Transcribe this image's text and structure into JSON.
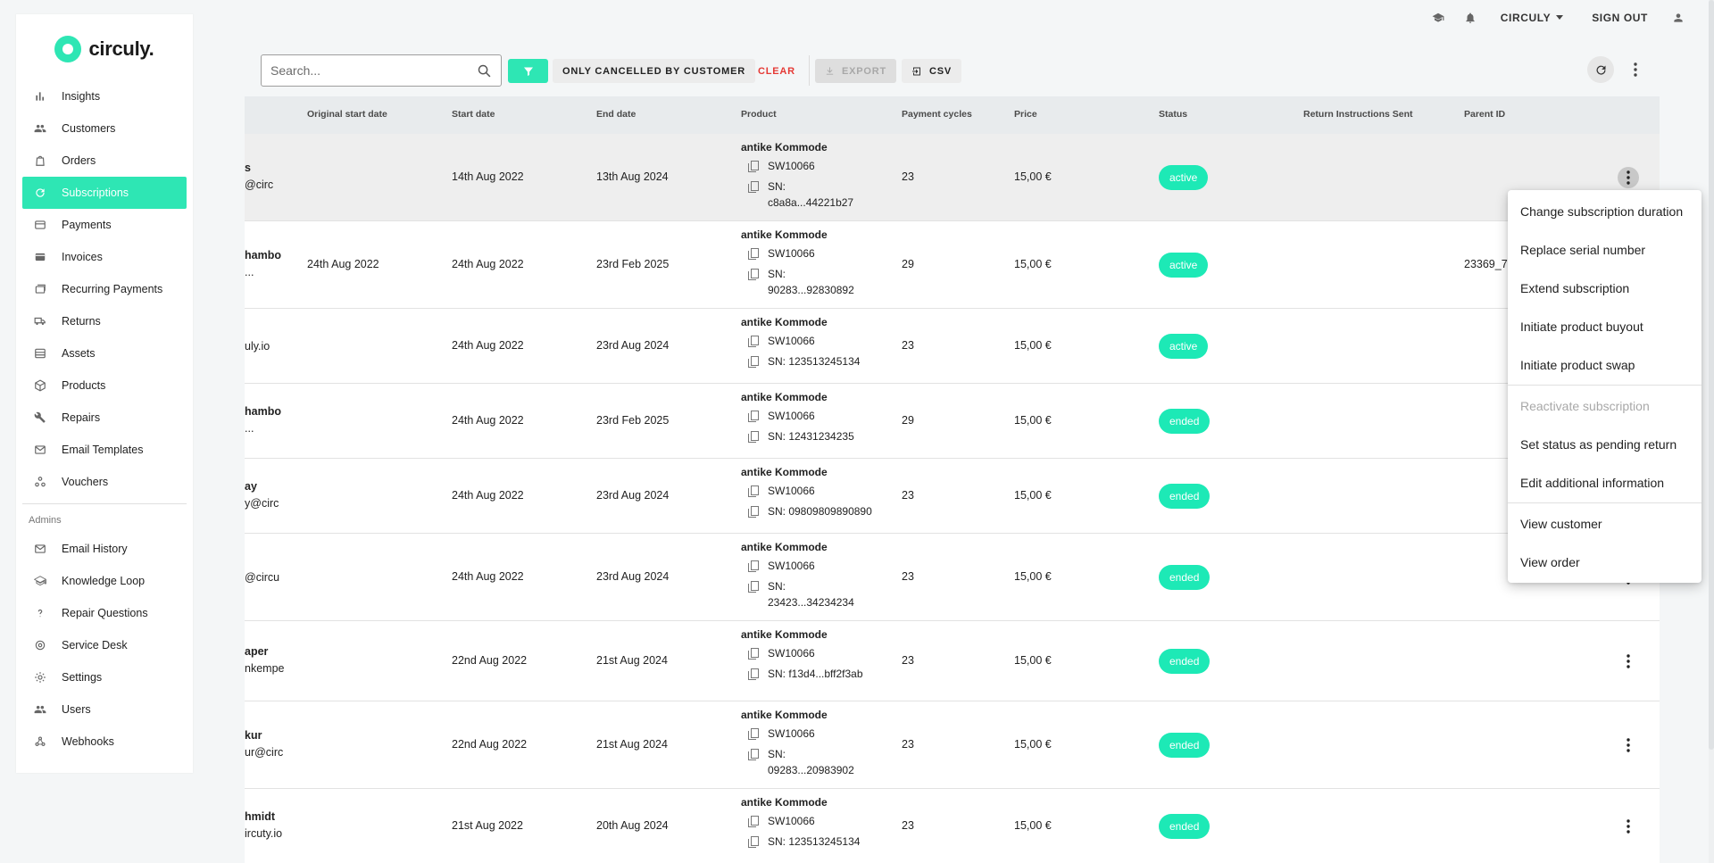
{
  "topbar": {
    "account_label": "CIRCULY",
    "sign_out_label": "SIGN OUT"
  },
  "brand": {
    "name": "circuly.",
    "accent": "#2ee6b4"
  },
  "sidebar": {
    "items": [
      {
        "label": "Insights",
        "icon": "bar-chart-icon"
      },
      {
        "label": "Customers",
        "icon": "people-icon"
      },
      {
        "label": "Orders",
        "icon": "shopping-bag-icon"
      },
      {
        "label": "Subscriptions",
        "icon": "refresh-icon",
        "active": true
      },
      {
        "label": "Payments",
        "icon": "credit-card-icon"
      },
      {
        "label": "Invoices",
        "icon": "invoice-icon"
      },
      {
        "label": "Recurring Payments",
        "icon": "recurring-icon"
      },
      {
        "label": "Returns",
        "icon": "truck-icon"
      },
      {
        "label": "Assets",
        "icon": "assets-icon"
      },
      {
        "label": "Products",
        "icon": "box-icon"
      },
      {
        "label": "Repairs",
        "icon": "wrench-icon"
      },
      {
        "label": "Email Templates",
        "icon": "mail-icon"
      },
      {
        "label": "Vouchers",
        "icon": "vouchers-icon"
      }
    ],
    "admins_label": "Admins",
    "admin_items": [
      {
        "label": "Email History",
        "icon": "mail-icon"
      },
      {
        "label": "Knowledge Loop",
        "icon": "graduation-cap-icon"
      },
      {
        "label": "Repair Questions",
        "icon": "question-icon"
      },
      {
        "label": "Service Desk",
        "icon": "support-icon"
      },
      {
        "label": "Settings",
        "icon": "gear-icon"
      },
      {
        "label": "Users",
        "icon": "people-icon"
      },
      {
        "label": "Webhooks",
        "icon": "webhook-icon"
      }
    ]
  },
  "toolbar": {
    "search_placeholder": "Search...",
    "filter_chip": "ONLY CANCELLED BY CUSTOMER",
    "clear_label": "CLEAR",
    "export_label": "EXPORT",
    "csv_label": "CSV"
  },
  "table": {
    "columns": [
      "Original start date",
      "Start date",
      "End date",
      "Product",
      "Payment cycles",
      "Price",
      "Status",
      "Return Instructions Sent",
      "Parent ID"
    ],
    "rows": [
      {
        "name": "s",
        "email": "@circ",
        "original_start": "",
        "start": "14th Aug 2022",
        "end": "13th Aug 2024",
        "product": "antike Kommode",
        "sku": "SW10066",
        "sn": [
          "SN:",
          "c8a8a...44221b27"
        ],
        "cycles": "23",
        "price": "15,00 €",
        "status": "active",
        "parent": "",
        "highlight": true
      },
      {
        "name": "hambo",
        "email": "...",
        "original_start": "24th Aug 2022",
        "start": "24th Aug 2022",
        "end": "23rd Feb 2025",
        "product": "antike Kommode",
        "sku": "SW10066",
        "sn": [
          "SN:",
          "90283...92830892"
        ],
        "cycles": "29",
        "price": "15,00 €",
        "status": "active",
        "parent": "23369_7"
      },
      {
        "name": "",
        "email": "uly.io",
        "original_start": "",
        "start": "24th Aug 2022",
        "end": "23rd Aug 2024",
        "product": "antike Kommode",
        "sku": "SW10066",
        "sn": [
          "SN: 123513245134"
        ],
        "cycles": "23",
        "price": "15,00 €",
        "status": "active",
        "parent": ""
      },
      {
        "name": "hambo",
        "email": "...",
        "original_start": "",
        "start": "24th Aug 2022",
        "end": "23rd Feb 2025",
        "product": "antike Kommode",
        "sku": "SW10066",
        "sn": [
          "SN: 12431234235"
        ],
        "cycles": "29",
        "price": "15,00 €",
        "status": "ended",
        "parent": ""
      },
      {
        "name": "ay",
        "email": "y@circ",
        "original_start": "",
        "start": "24th Aug 2022",
        "end": "23rd Aug 2024",
        "product": "antike Kommode",
        "sku": "SW10066",
        "sn": [
          "SN: 09809809890890"
        ],
        "cycles": "23",
        "price": "15,00 €",
        "status": "ended",
        "parent": ""
      },
      {
        "name": "",
        "email": "@circu",
        "original_start": "",
        "start": "24th Aug 2022",
        "end": "23rd Aug 2024",
        "product": "antike Kommode",
        "sku": "SW10066",
        "sn": [
          "SN:",
          "23423...34234234"
        ],
        "cycles": "23",
        "price": "15,00 €",
        "status": "ended",
        "parent": ""
      },
      {
        "name": "aper",
        "email": "nkempe",
        "original_start": "",
        "start": "22nd Aug 2022",
        "end": "21st Aug 2024",
        "product": "antike Kommode",
        "sku": "SW10066",
        "sn": [
          "SN: f13d4...bff2f3ab"
        ],
        "cycles": "23",
        "price": "15,00 €",
        "status": "ended",
        "parent": ""
      },
      {
        "name": "kur",
        "email": "ur@circ",
        "original_start": "",
        "start": "22nd Aug 2022",
        "end": "21st Aug 2024",
        "product": "antike Kommode",
        "sku": "SW10066",
        "sn": [
          "SN:",
          "09283...20983902"
        ],
        "cycles": "23",
        "price": "15,00 €",
        "status": "ended",
        "parent": ""
      },
      {
        "name": "hmidt",
        "email": "ircuty.io",
        "original_start": "",
        "start": "21st Aug 2022",
        "end": "20th Aug 2024",
        "product": "antike Kommode",
        "sku": "SW10066",
        "sn": [
          "SN: 123513245134"
        ],
        "cycles": "23",
        "price": "15,00 €",
        "status": "ended",
        "parent": ""
      }
    ]
  },
  "context_menu": {
    "groups": [
      [
        "Change subscription duration",
        "Replace serial number",
        "Extend subscription",
        "Initiate product buyout",
        "Initiate product swap"
      ],
      [
        "Reactivate subscription",
        "Set status as pending return",
        "Edit additional information"
      ],
      [
        "View customer",
        "View order"
      ]
    ],
    "disabled": [
      "Reactivate subscription"
    ]
  }
}
